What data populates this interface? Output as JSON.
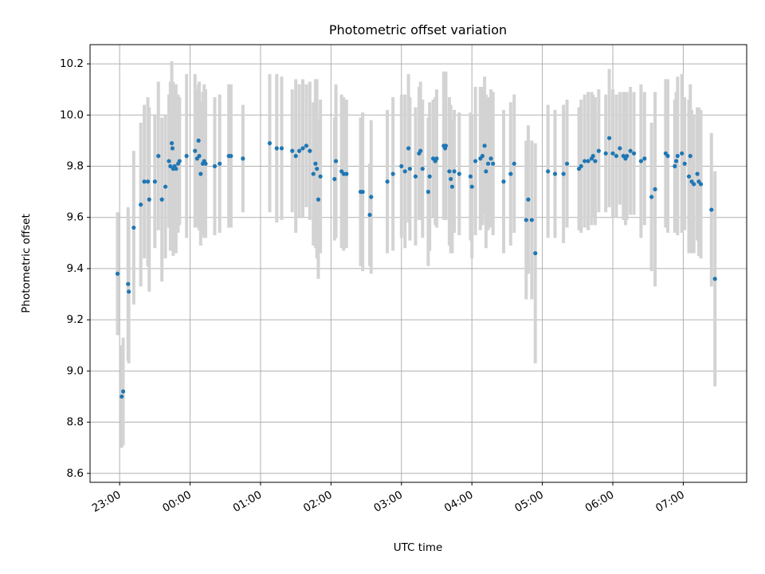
{
  "chart_data": {
    "type": "scatter",
    "title": "Photometric offset variation",
    "xlabel": "UTC time",
    "ylabel": "Photometric offset",
    "x_ticks": [
      "23:00",
      "00:00",
      "01:00",
      "02:00",
      "03:00",
      "04:00",
      "05:00",
      "06:00",
      "07:00"
    ],
    "x_tick_hours": [
      23,
      24,
      25,
      26,
      27,
      28,
      29,
      30,
      31
    ],
    "xlim": [
      22.58,
      31.9
    ],
    "ylim": [
      8.565,
      10.275
    ],
    "y_ticks": [
      8.6,
      8.8,
      9.0,
      9.2,
      9.4,
      9.6,
      9.8,
      10.0,
      10.2
    ],
    "grid": true,
    "colors": {
      "point": "#1f77b4",
      "errorbar": "#d3d3d3",
      "grid": "#b0b0b0"
    },
    "series": [
      {
        "x": [
          22.97,
          23.03,
          23.05,
          23.12,
          23.13,
          23.2,
          23.3,
          23.35,
          23.4,
          23.42,
          23.5,
          23.55,
          23.6,
          23.65,
          23.7,
          23.72,
          23.74,
          23.75,
          23.76,
          23.78,
          23.8,
          23.83,
          23.85,
          23.95,
          24.07,
          24.1,
          24.12,
          24.13,
          24.15,
          24.18,
          24.2,
          24.22,
          24.35,
          24.42,
          24.55,
          24.58,
          24.75,
          25.13,
          25.23,
          25.3,
          25.45,
          25.5,
          25.55,
          25.6,
          25.65,
          25.7,
          25.75,
          25.78,
          25.8,
          25.82,
          25.85,
          26.05,
          26.07,
          26.15,
          26.18,
          26.22,
          26.42,
          26.45,
          26.55,
          26.57,
          26.8,
          26.88,
          27.0,
          27.05,
          27.1,
          27.12,
          27.2,
          27.25,
          27.27,
          27.3,
          27.38,
          27.4,
          27.45,
          27.48,
          27.5,
          27.6,
          27.62,
          27.63,
          27.68,
          27.7,
          27.72,
          27.75,
          27.82,
          27.98,
          28.0,
          28.05,
          28.12,
          28.15,
          28.18,
          28.2,
          28.23,
          28.27,
          28.3,
          28.45,
          28.55,
          28.6,
          28.77,
          28.8,
          28.85,
          28.9,
          29.08,
          29.18,
          29.3,
          29.35,
          29.52,
          29.55,
          29.6,
          29.65,
          29.7,
          29.72,
          29.75,
          29.8,
          29.9,
          29.95,
          30.0,
          30.05,
          30.1,
          30.15,
          30.18,
          30.2,
          30.25,
          30.3,
          30.4,
          30.45,
          30.55,
          30.6,
          30.75,
          30.78,
          30.88,
          30.9,
          30.92,
          30.98,
          31.02,
          31.08,
          31.1,
          31.12,
          31.15,
          31.2,
          31.22,
          31.25,
          31.4,
          31.45
        ],
        "y": [
          9.38,
          8.9,
          8.92,
          9.34,
          9.31,
          9.56,
          9.65,
          9.74,
          9.74,
          9.67,
          9.74,
          9.84,
          9.67,
          9.72,
          9.82,
          9.8,
          9.89,
          9.87,
          9.79,
          9.8,
          9.79,
          9.81,
          9.82,
          9.84,
          9.86,
          9.83,
          9.9,
          9.84,
          9.77,
          9.81,
          9.82,
          9.81,
          9.8,
          9.81,
          9.84,
          9.84,
          9.83,
          9.89,
          9.87,
          9.87,
          9.86,
          9.84,
          9.86,
          9.87,
          9.88,
          9.86,
          9.77,
          9.81,
          9.79,
          9.67,
          9.76,
          9.75,
          9.82,
          9.78,
          9.77,
          9.77,
          9.7,
          9.7,
          9.61,
          9.68,
          9.74,
          9.77,
          9.8,
          9.78,
          9.87,
          9.79,
          9.76,
          9.85,
          9.86,
          9.79,
          9.7,
          9.76,
          9.83,
          9.82,
          9.83,
          9.88,
          9.87,
          9.88,
          9.78,
          9.75,
          9.72,
          9.78,
          9.77,
          9.76,
          9.72,
          9.82,
          9.83,
          9.84,
          9.88,
          9.78,
          9.81,
          9.83,
          9.81,
          9.74,
          9.77,
          9.81,
          9.59,
          9.67,
          9.59,
          9.46,
          9.78,
          9.77,
          9.77,
          9.81,
          9.79,
          9.8,
          9.82,
          9.82,
          9.83,
          9.84,
          9.82,
          9.86,
          9.85,
          9.91,
          9.85,
          9.84,
          9.87,
          9.84,
          9.83,
          9.84,
          9.86,
          9.85,
          9.82,
          9.83,
          9.68,
          9.71,
          9.85,
          9.84,
          9.8,
          9.82,
          9.84,
          9.85,
          9.81,
          9.76,
          9.84,
          9.74,
          9.73,
          9.77,
          9.74,
          9.73,
          9.63,
          9.36
        ],
        "yerr": [
          0.24,
          0.2,
          0.21,
          0.3,
          0.28,
          0.3,
          0.32,
          0.3,
          0.33,
          0.36,
          0.26,
          0.29,
          0.32,
          0.28,
          0.26,
          0.33,
          0.32,
          0.24,
          0.34,
          0.3,
          0.33,
          0.27,
          0.25,
          0.32,
          0.3,
          0.27,
          0.22,
          0.29,
          0.28,
          0.28,
          0.3,
          0.29,
          0.27,
          0.27,
          0.28,
          0.28,
          0.21,
          0.27,
          0.29,
          0.28,
          0.24,
          0.3,
          0.26,
          0.27,
          0.24,
          0.27,
          0.28,
          0.33,
          0.35,
          0.31,
          0.3,
          0.24,
          0.3,
          0.3,
          0.3,
          0.29,
          0.29,
          0.31,
          0.2,
          0.3,
          0.28,
          0.3,
          0.28,
          0.3,
          0.29,
          0.28,
          0.27,
          0.26,
          0.27,
          0.27,
          0.29,
          0.29,
          0.23,
          0.25,
          0.27,
          0.29,
          0.28,
          0.29,
          0.29,
          0.29,
          0.26,
          0.24,
          0.24,
          0.25,
          0.28,
          0.29,
          0.28,
          0.27,
          0.27,
          0.3,
          0.26,
          0.27,
          0.28,
          0.28,
          0.28,
          0.27,
          0.31,
          0.29,
          0.31,
          0.43,
          0.26,
          0.25,
          0.27,
          0.25,
          0.24,
          0.26,
          0.26,
          0.27,
          0.26,
          0.24,
          0.25,
          0.24,
          0.23,
          0.27,
          0.25,
          0.24,
          0.22,
          0.25,
          0.26,
          0.25,
          0.25,
          0.24,
          0.3,
          0.26,
          0.29,
          0.38,
          0.29,
          0.3,
          0.26,
          0.27,
          0.31,
          0.31,
          0.26,
          0.3,
          0.28,
          0.28,
          0.27,
          0.26,
          0.29,
          0.29,
          0.3,
          0.42
        ]
      }
    ]
  }
}
